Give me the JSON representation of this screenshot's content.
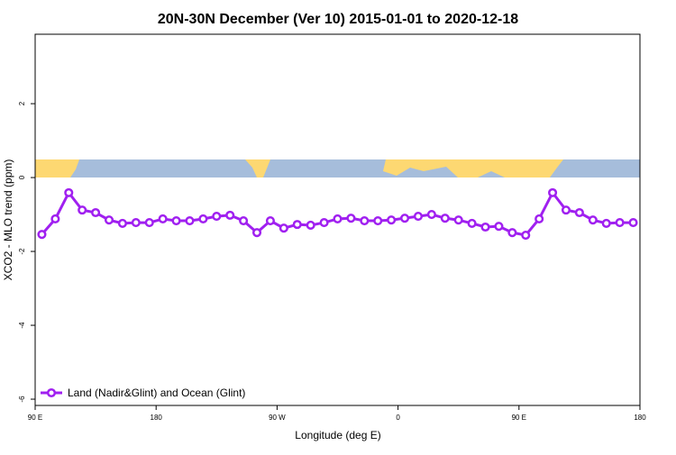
{
  "chart_data": {
    "type": "line",
    "title": "20N-30N December (Ver 10)   2015-01-01 to 2020-12-18",
    "x_label": "Longitude (deg E)",
    "y_label": "XCO2 - MLO trend (ppm)",
    "x": [
      95,
      105,
      115,
      125,
      135,
      145,
      155,
      165,
      175,
      185,
      195,
      205,
      215,
      225,
      235,
      245,
      255,
      265,
      275,
      285,
      295,
      305,
      315,
      325,
      335,
      345,
      355,
      365,
      375,
      385,
      395,
      405,
      415,
      425,
      435,
      445,
      455,
      465,
      475,
      485,
      495,
      505,
      515,
      525,
      535
    ],
    "series": [
      {
        "name": "Land (Nadir&Glint) and Ocean (Glint)",
        "color": "#a020f0",
        "values": [
          -1.54,
          -1.12,
          -0.41,
          -0.88,
          -0.95,
          -1.15,
          -1.24,
          -1.22,
          -1.22,
          -1.12,
          -1.17,
          -1.17,
          -1.12,
          -1.05,
          -1.02,
          -1.17,
          -1.49,
          -1.17,
          -1.37,
          -1.27,
          -1.29,
          -1.22,
          -1.12,
          -1.1,
          -1.17,
          -1.17,
          -1.15,
          -1.1,
          -1.05,
          -1.0,
          -1.1,
          -1.15,
          -1.24,
          -1.34,
          -1.32,
          -1.49,
          -1.56,
          -1.12,
          -0.41,
          -0.88,
          -0.95,
          -1.15,
          -1.24,
          -1.22,
          -1.22
        ]
      }
    ],
    "xlim": [
      90,
      540
    ],
    "xticks": [
      {
        "value": 90,
        "label": "90 E"
      },
      180,
      {
        "value": 270,
        "label": "90 W"
      },
      {
        "value": 360,
        "label": "0"
      },
      {
        "value": 450,
        "label": "90 E"
      },
      {
        "value": 540,
        "label": "180"
      }
    ],
    "ylim": [
      -6.17,
      3.88
    ],
    "yticks": [
      -6,
      -4,
      -2,
      0,
      2
    ],
    "legend": "bottom-left"
  }
}
